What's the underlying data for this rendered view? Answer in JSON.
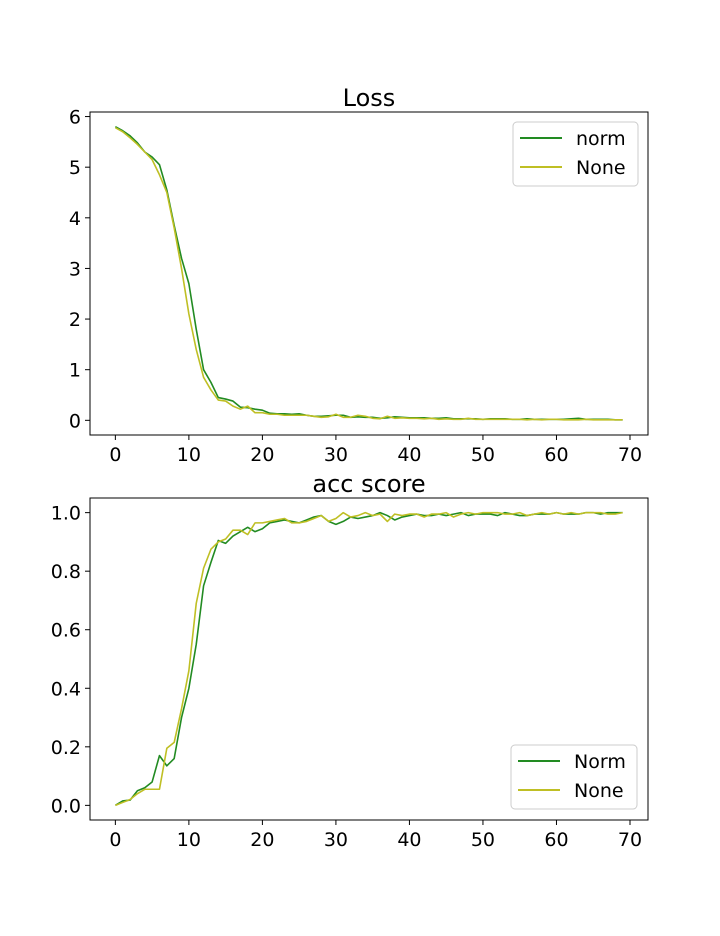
{
  "colors": {
    "series_1": "#228B22",
    "series_2": "#BFBF24"
  },
  "chart_data": [
    {
      "type": "line",
      "title": "Loss",
      "xlabel": "",
      "ylabel": "",
      "xlim": [
        -3.45,
        72.45
      ],
      "ylim": [
        -0.29,
        6.09
      ],
      "xticks": [
        0,
        10,
        20,
        30,
        40,
        50,
        60,
        70
      ],
      "yticks": [
        0,
        1,
        2,
        3,
        4,
        5,
        6
      ],
      "legend_position": "top-right",
      "grid": false,
      "x": [
        0,
        1,
        2,
        3,
        4,
        5,
        6,
        7,
        8,
        9,
        10,
        11,
        12,
        13,
        14,
        15,
        16,
        17,
        18,
        19,
        20,
        21,
        22,
        23,
        24,
        25,
        26,
        27,
        28,
        29,
        30,
        31,
        32,
        33,
        34,
        35,
        36,
        37,
        38,
        39,
        40,
        41,
        42,
        43,
        44,
        45,
        46,
        47,
        48,
        49,
        50,
        51,
        52,
        53,
        54,
        55,
        56,
        57,
        58,
        59,
        60,
        61,
        62,
        63,
        64,
        65,
        66,
        67,
        68,
        69
      ],
      "series": [
        {
          "name": "norm",
          "color": "#228B22",
          "values": [
            5.8,
            5.72,
            5.62,
            5.48,
            5.3,
            5.2,
            5.05,
            4.55,
            3.85,
            3.2,
            2.7,
            1.8,
            1.0,
            0.75,
            0.45,
            0.42,
            0.38,
            0.26,
            0.25,
            0.22,
            0.2,
            0.14,
            0.13,
            0.13,
            0.12,
            0.13,
            0.1,
            0.08,
            0.08,
            0.09,
            0.1,
            0.1,
            0.06,
            0.07,
            0.06,
            0.06,
            0.04,
            0.05,
            0.07,
            0.06,
            0.05,
            0.05,
            0.05,
            0.04,
            0.04,
            0.05,
            0.03,
            0.03,
            0.03,
            0.03,
            0.02,
            0.03,
            0.03,
            0.03,
            0.02,
            0.02,
            0.03,
            0.02,
            0.02,
            0.02,
            0.02,
            0.02,
            0.03,
            0.04,
            0.02,
            0.02,
            0.02,
            0.02,
            0.01,
            0.01
          ]
        },
        {
          "name": "None",
          "color": "#BFBF24",
          "values": [
            5.78,
            5.7,
            5.58,
            5.45,
            5.3,
            5.15,
            4.85,
            4.5,
            3.8,
            3.0,
            2.1,
            1.4,
            0.85,
            0.6,
            0.4,
            0.38,
            0.28,
            0.22,
            0.28,
            0.15,
            0.15,
            0.12,
            0.12,
            0.1,
            0.1,
            0.1,
            0.1,
            0.08,
            0.06,
            0.07,
            0.12,
            0.06,
            0.06,
            0.1,
            0.08,
            0.04,
            0.03,
            0.08,
            0.04,
            0.05,
            0.04,
            0.04,
            0.03,
            0.04,
            0.02,
            0.03,
            0.02,
            0.02,
            0.04,
            0.02,
            0.02,
            0.02,
            0.02,
            0.02,
            0.02,
            0.02,
            0.01,
            0.02,
            0.01,
            0.02,
            0.02,
            0.01,
            0.01,
            0.01,
            0.02,
            0.01,
            0.01,
            0.01,
            0.01,
            0.01
          ]
        }
      ]
    },
    {
      "type": "line",
      "title": "acc score",
      "xlabel": "",
      "ylabel": "",
      "xlim": [
        -3.45,
        72.45
      ],
      "ylim": [
        -0.05,
        1.05
      ],
      "xticks": [
        0,
        10,
        20,
        30,
        40,
        50,
        60,
        70
      ],
      "yticks": [
        0.0,
        0.2,
        0.4,
        0.6,
        0.8,
        1.0
      ],
      "ytick_labels": [
        "0.0",
        "0.2",
        "0.4",
        "0.6",
        "0.8",
        "1.0"
      ],
      "legend_position": "bottom-right",
      "grid": false,
      "x": [
        0,
        1,
        2,
        3,
        4,
        5,
        6,
        7,
        8,
        9,
        10,
        11,
        12,
        13,
        14,
        15,
        16,
        17,
        18,
        19,
        20,
        21,
        22,
        23,
        24,
        25,
        26,
        27,
        28,
        29,
        30,
        31,
        32,
        33,
        34,
        35,
        36,
        37,
        38,
        39,
        40,
        41,
        42,
        43,
        44,
        45,
        46,
        47,
        48,
        49,
        50,
        51,
        52,
        53,
        54,
        55,
        56,
        57,
        58,
        59,
        60,
        61,
        62,
        63,
        64,
        65,
        66,
        67,
        68,
        69
      ],
      "series": [
        {
          "name": "Norm",
          "color": "#228B22",
          "values": [
            0.0,
            0.015,
            0.018,
            0.05,
            0.06,
            0.08,
            0.17,
            0.135,
            0.16,
            0.3,
            0.4,
            0.55,
            0.75,
            0.83,
            0.905,
            0.895,
            0.92,
            0.935,
            0.95,
            0.935,
            0.945,
            0.965,
            0.97,
            0.975,
            0.97,
            0.965,
            0.975,
            0.985,
            0.99,
            0.97,
            0.96,
            0.97,
            0.985,
            0.98,
            0.985,
            0.99,
            1.0,
            0.99,
            0.975,
            0.985,
            0.99,
            0.995,
            0.99,
            0.99,
            0.995,
            0.99,
            0.995,
            1.0,
            0.99,
            0.995,
            0.995,
            0.995,
            0.99,
            1.0,
            0.995,
            0.99,
            0.99,
            0.995,
            0.995,
            0.995,
            1.0,
            0.995,
            0.995,
            0.995,
            1.0,
            1.0,
            0.995,
            1.0,
            1.0,
            1.0
          ]
        },
        {
          "name": "None",
          "color": "#BFBF24",
          "values": [
            0.0,
            0.01,
            0.02,
            0.04,
            0.055,
            0.055,
            0.055,
            0.195,
            0.215,
            0.33,
            0.46,
            0.69,
            0.81,
            0.875,
            0.9,
            0.91,
            0.94,
            0.94,
            0.925,
            0.965,
            0.965,
            0.97,
            0.975,
            0.98,
            0.965,
            0.965,
            0.97,
            0.98,
            0.99,
            0.97,
            0.98,
            1.0,
            0.985,
            0.99,
            1.0,
            0.99,
            0.995,
            0.97,
            0.995,
            0.99,
            0.995,
            0.995,
            0.985,
            0.995,
            0.995,
            1.0,
            0.985,
            0.995,
            1.0,
            0.995,
            1.0,
            1.0,
            1.0,
            0.995,
            0.995,
            1.0,
            0.99,
            0.995,
            1.0,
            0.995,
            1.0,
            0.995,
            1.0,
            0.995,
            1.0,
            1.0,
            1.0,
            0.995,
            0.995,
            1.0
          ]
        }
      ]
    }
  ]
}
